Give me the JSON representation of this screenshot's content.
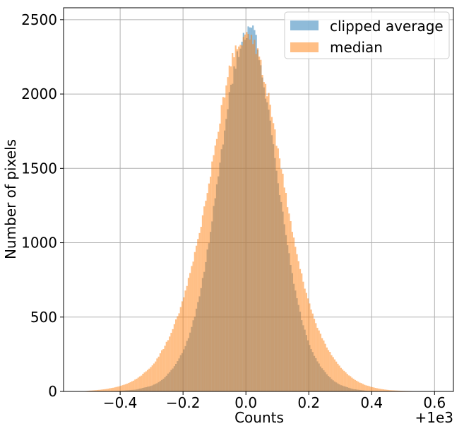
{
  "chart_data": {
    "type": "bar",
    "title": "",
    "xlabel": "Counts",
    "ylabel": "Number of pixels",
    "offset_label": "+1e3",
    "xlim": [
      -0.58,
      0.66
    ],
    "ylim": [
      0,
      2580
    ],
    "xticks": [
      -0.4,
      -0.2,
      0.0,
      0.2,
      0.4,
      0.6
    ],
    "xtick_labels": [
      "−0.4",
      "−0.2",
      "0.0",
      "0.2",
      "0.4",
      "0.6"
    ],
    "yticks": [
      0,
      500,
      1000,
      1500,
      2000,
      2500
    ],
    "ytick_labels": [
      "0",
      "500",
      "1000",
      "1500",
      "2000",
      "2500"
    ],
    "grid": true,
    "legend_position": "top-right",
    "bin_width": 0.01,
    "series": [
      {
        "name": "clipped average",
        "color": "#1f77b4",
        "alpha": 0.5,
        "bins": [
          [
            -0.45,
            0
          ],
          [
            -0.4,
            4
          ],
          [
            -0.35,
            12
          ],
          [
            -0.3,
            38
          ],
          [
            -0.28,
            58
          ],
          [
            -0.26,
            90
          ],
          [
            -0.24,
            135
          ],
          [
            -0.22,
            195
          ],
          [
            -0.2,
            270
          ],
          [
            -0.19,
            320
          ],
          [
            -0.18,
            380
          ],
          [
            -0.17,
            450
          ],
          [
            -0.16,
            530
          ],
          [
            -0.15,
            620
          ],
          [
            -0.14,
            730
          ],
          [
            -0.13,
            850
          ],
          [
            -0.12,
            980
          ],
          [
            -0.11,
            1120
          ],
          [
            -0.1,
            1270
          ],
          [
            -0.09,
            1420
          ],
          [
            -0.08,
            1580
          ],
          [
            -0.07,
            1730
          ],
          [
            -0.06,
            1880
          ],
          [
            -0.05,
            2010
          ],
          [
            -0.04,
            2130
          ],
          [
            -0.03,
            2230
          ],
          [
            -0.02,
            2300
          ],
          [
            -0.01,
            2370
          ],
          [
            0.0,
            2400
          ],
          [
            0.01,
            2440
          ],
          [
            0.02,
            2470
          ],
          [
            0.03,
            2390
          ],
          [
            0.04,
            2280
          ],
          [
            0.05,
            2180
          ],
          [
            0.06,
            2040
          ],
          [
            0.07,
            1910
          ],
          [
            0.08,
            1760
          ],
          [
            0.09,
            1610
          ],
          [
            0.1,
            1450
          ],
          [
            0.11,
            1300
          ],
          [
            0.12,
            1150
          ],
          [
            0.13,
            1010
          ],
          [
            0.14,
            880
          ],
          [
            0.15,
            760
          ],
          [
            0.16,
            650
          ],
          [
            0.17,
            550
          ],
          [
            0.18,
            465
          ],
          [
            0.19,
            390
          ],
          [
            0.2,
            325
          ],
          [
            0.22,
            230
          ],
          [
            0.24,
            160
          ],
          [
            0.26,
            110
          ],
          [
            0.28,
            70
          ],
          [
            0.3,
            44
          ],
          [
            0.34,
            16
          ],
          [
            0.38,
            5
          ],
          [
            0.42,
            0
          ]
        ]
      },
      {
        "name": "median",
        "color": "#ff7f0e",
        "alpha": 0.5,
        "bins": [
          [
            -0.52,
            0
          ],
          [
            -0.5,
            5
          ],
          [
            -0.48,
            8
          ],
          [
            -0.46,
            12
          ],
          [
            -0.44,
            18
          ],
          [
            -0.42,
            26
          ],
          [
            -0.4,
            36
          ],
          [
            -0.38,
            50
          ],
          [
            -0.36,
            70
          ],
          [
            -0.34,
            95
          ],
          [
            -0.32,
            130
          ],
          [
            -0.3,
            170
          ],
          [
            -0.28,
            225
          ],
          [
            -0.26,
            300
          ],
          [
            -0.24,
            380
          ],
          [
            -0.23,
            430
          ],
          [
            -0.22,
            490
          ],
          [
            -0.21,
            550
          ],
          [
            -0.2,
            620
          ],
          [
            -0.19,
            690
          ],
          [
            -0.18,
            775
          ],
          [
            -0.17,
            860
          ],
          [
            -0.16,
            950
          ],
          [
            -0.15,
            1050
          ],
          [
            -0.14,
            1150
          ],
          [
            -0.13,
            1260
          ],
          [
            -0.12,
            1370
          ],
          [
            -0.11,
            1490
          ],
          [
            -0.1,
            1610
          ],
          [
            -0.09,
            1740
          ],
          [
            -0.08,
            1860
          ],
          [
            -0.07,
            1980
          ],
          [
            -0.06,
            2090
          ],
          [
            -0.05,
            2180
          ],
          [
            -0.04,
            2260
          ],
          [
            -0.03,
            2320
          ],
          [
            -0.02,
            2355
          ],
          [
            -0.01,
            2380
          ],
          [
            0.0,
            2400
          ],
          [
            0.01,
            2390
          ],
          [
            0.02,
            2360
          ],
          [
            0.03,
            2320
          ],
          [
            0.04,
            2265
          ],
          [
            0.05,
            2190
          ],
          [
            0.06,
            2100
          ],
          [
            0.07,
            2000
          ],
          [
            0.08,
            1890
          ],
          [
            0.09,
            1775
          ],
          [
            0.1,
            1650
          ],
          [
            0.11,
            1530
          ],
          [
            0.12,
            1410
          ],
          [
            0.13,
            1290
          ],
          [
            0.14,
            1170
          ],
          [
            0.15,
            1060
          ],
          [
            0.16,
            950
          ],
          [
            0.17,
            850
          ],
          [
            0.18,
            760
          ],
          [
            0.19,
            680
          ],
          [
            0.2,
            600
          ],
          [
            0.21,
            530
          ],
          [
            0.22,
            470
          ],
          [
            0.24,
            370
          ],
          [
            0.26,
            290
          ],
          [
            0.28,
            220
          ],
          [
            0.3,
            165
          ],
          [
            0.32,
            122
          ],
          [
            0.34,
            88
          ],
          [
            0.36,
            62
          ],
          [
            0.38,
            43
          ],
          [
            0.4,
            30
          ],
          [
            0.42,
            20
          ],
          [
            0.44,
            13
          ],
          [
            0.46,
            8
          ],
          [
            0.5,
            4
          ],
          [
            0.54,
            2
          ],
          [
            0.58,
            0
          ]
        ]
      }
    ]
  }
}
